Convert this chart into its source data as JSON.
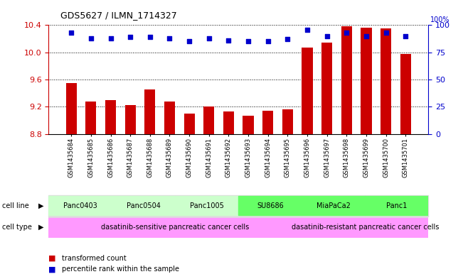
{
  "title": "GDS5627 / ILMN_1714327",
  "samples": [
    "GSM1435684",
    "GSM1435685",
    "GSM1435686",
    "GSM1435687",
    "GSM1435688",
    "GSM1435689",
    "GSM1435690",
    "GSM1435691",
    "GSM1435692",
    "GSM1435693",
    "GSM1435694",
    "GSM1435695",
    "GSM1435696",
    "GSM1435697",
    "GSM1435698",
    "GSM1435699",
    "GSM1435700",
    "GSM1435701"
  ],
  "transformed_count": [
    9.55,
    9.28,
    9.3,
    9.22,
    9.45,
    9.28,
    9.1,
    9.2,
    9.13,
    9.07,
    9.14,
    9.16,
    10.07,
    10.14,
    10.38,
    10.36,
    10.35,
    9.98
  ],
  "percentile_rank": [
    93,
    88,
    88,
    89,
    89,
    88,
    85,
    88,
    86,
    85,
    85,
    87,
    96,
    90,
    93,
    90,
    93,
    90
  ],
  "cell_line_groups": [
    {
      "label": "Panc0403",
      "start": 0,
      "end": 2,
      "color": "#ccffcc"
    },
    {
      "label": "Panc0504",
      "start": 3,
      "end": 5,
      "color": "#ccffcc"
    },
    {
      "label": "Panc1005",
      "start": 6,
      "end": 8,
      "color": "#ccffcc"
    },
    {
      "label": "SU8686",
      "start": 9,
      "end": 11,
      "color": "#66ff66"
    },
    {
      "label": "MiaPaCa2",
      "start": 12,
      "end": 14,
      "color": "#66ff66"
    },
    {
      "label": "Panc1",
      "start": 15,
      "end": 17,
      "color": "#66ff66"
    }
  ],
  "cell_type_groups": [
    {
      "label": "dasatinib-sensitive pancreatic cancer cells",
      "start": 0,
      "end": 11,
      "color": "#ff99ff"
    },
    {
      "label": "dasatinib-resistant pancreatic cancer cells",
      "start": 12,
      "end": 17,
      "color": "#ff99ff"
    }
  ],
  "ylim_left": [
    8.8,
    10.4
  ],
  "ylim_right": [
    0,
    100
  ],
  "yticks_left": [
    8.8,
    9.2,
    9.6,
    10.0,
    10.4
  ],
  "yticks_right": [
    0,
    25,
    50,
    75,
    100
  ],
  "bar_color": "#cc0000",
  "dot_color": "#0000cc",
  "bg_color": "#dddddd",
  "legend_items": [
    {
      "label": "transformed count",
      "color": "#cc0000"
    },
    {
      "label": "percentile rank within the sample",
      "color": "#0000cc"
    }
  ]
}
